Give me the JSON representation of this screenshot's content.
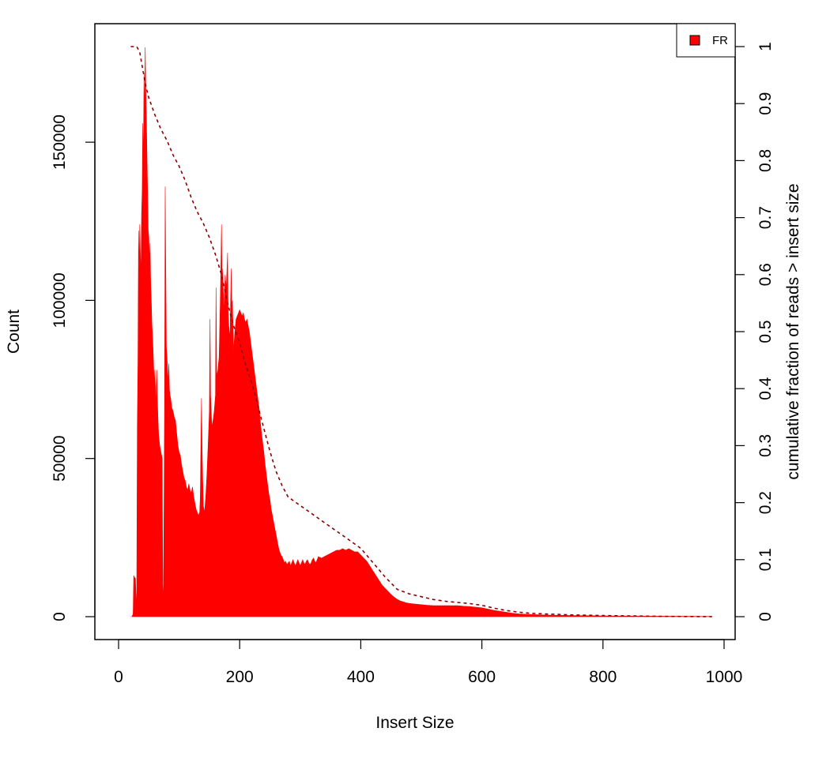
{
  "chart_data": {
    "type": "area",
    "title": "",
    "xlabel": "Insert Size",
    "ylabel": "Count",
    "ylabel_right": "cumulative fraction of reads > insert size",
    "xlim": [
      0,
      1000
    ],
    "ylim": [
      -7000,
      187000
    ],
    "ylim_right": [
      0,
      1
    ],
    "x_ticks": [
      0,
      200,
      400,
      600,
      800,
      1000
    ],
    "y_ticks": [
      0,
      50000,
      100000,
      150000
    ],
    "y_ticks_right": [
      0,
      0.1,
      0.2,
      0.3,
      0.4,
      0.5,
      0.6,
      0.7,
      0.8,
      0.9,
      1
    ],
    "grid": false,
    "legend": {
      "position": "top-right",
      "entries": [
        {
          "label": "FR",
          "color": "#ff0000"
        }
      ]
    },
    "series": [
      {
        "name": "FR",
        "kind": "area",
        "color": "#ff0000",
        "points": [
          [
            20,
            0
          ],
          [
            22,
            0
          ],
          [
            24,
            800
          ],
          [
            25,
            13000
          ],
          [
            26,
            12500
          ],
          [
            28,
            12000
          ],
          [
            29,
            3000
          ],
          [
            30,
            9000
          ],
          [
            31,
            60000
          ],
          [
            32,
            80000
          ],
          [
            33,
            122000
          ],
          [
            34,
            110000
          ],
          [
            35,
            124000
          ],
          [
            36,
            114000
          ],
          [
            37,
            108000
          ],
          [
            38,
            127000
          ],
          [
            39,
            135000
          ],
          [
            40,
            156000
          ],
          [
            41,
            144000
          ],
          [
            42,
            172000
          ],
          [
            43,
            158000
          ],
          [
            44,
            180000
          ],
          [
            45,
            166000
          ],
          [
            46,
            158000
          ],
          [
            47,
            145000
          ],
          [
            48,
            134000
          ],
          [
            49,
            122000
          ],
          [
            50,
            120000
          ],
          [
            51,
            112000
          ],
          [
            52,
            118000
          ],
          [
            53,
            106000
          ],
          [
            54,
            100000
          ],
          [
            55,
            93000
          ],
          [
            56,
            89000
          ],
          [
            57,
            84000
          ],
          [
            58,
            79000
          ],
          [
            59,
            74000
          ],
          [
            60,
            78000
          ],
          [
            61,
            72000
          ],
          [
            62,
            66000
          ],
          [
            63,
            78000
          ],
          [
            64,
            70000
          ],
          [
            65,
            63000
          ],
          [
            66,
            58000
          ],
          [
            67,
            56000
          ],
          [
            68,
            54000
          ],
          [
            70,
            52000
          ],
          [
            72,
            50000
          ],
          [
            73,
            10000
          ],
          [
            74,
            4000
          ],
          [
            75,
            30000
          ],
          [
            76,
            68000
          ],
          [
            77,
            136000
          ],
          [
            78,
            110000
          ],
          [
            79,
            85000
          ],
          [
            80,
            82000
          ],
          [
            81,
            78000
          ],
          [
            82,
            74000
          ],
          [
            83,
            80000
          ],
          [
            84,
            72000
          ],
          [
            85,
            70000
          ],
          [
            86,
            69000
          ],
          [
            88,
            66000
          ],
          [
            90,
            65000
          ],
          [
            92,
            63000
          ],
          [
            94,
            62000
          ],
          [
            96,
            58000
          ],
          [
            98,
            54000
          ],
          [
            100,
            52000
          ],
          [
            102,
            51000
          ],
          [
            104,
            48000
          ],
          [
            106,
            46000
          ],
          [
            108,
            44000
          ],
          [
            110,
            43000
          ],
          [
            112,
            41000
          ],
          [
            114,
            40000
          ],
          [
            116,
            42000
          ],
          [
            118,
            40000
          ],
          [
            120,
            39000
          ],
          [
            122,
            41000
          ],
          [
            124,
            38000
          ],
          [
            126,
            36000
          ],
          [
            128,
            34000
          ],
          [
            130,
            33000
          ],
          [
            132,
            32000
          ],
          [
            134,
            33000
          ],
          [
            135,
            38000
          ],
          [
            136,
            56000
          ],
          [
            137,
            69000
          ],
          [
            138,
            52000
          ],
          [
            140,
            35000
          ],
          [
            142,
            33000
          ],
          [
            144,
            38000
          ],
          [
            146,
            45000
          ],
          [
            148,
            55000
          ],
          [
            150,
            65000
          ],
          [
            151,
            94000
          ],
          [
            152,
            70000
          ],
          [
            154,
            60000
          ],
          [
            156,
            62000
          ],
          [
            158,
            65000
          ],
          [
            160,
            70000
          ],
          [
            161,
            104000
          ],
          [
            162,
            76000
          ],
          [
            164,
            78000
          ],
          [
            166,
            82000
          ],
          [
            168,
            100000
          ],
          [
            169,
            112000
          ],
          [
            170,
            124000
          ],
          [
            171,
            105000
          ],
          [
            172,
            110000
          ],
          [
            174,
            96000
          ],
          [
            176,
            108000
          ],
          [
            178,
            104000
          ],
          [
            180,
            115000
          ],
          [
            181,
            96000
          ],
          [
            182,
            92000
          ],
          [
            184,
            88000
          ],
          [
            186,
            110000
          ],
          [
            187,
            98000
          ],
          [
            188,
            100000
          ],
          [
            190,
            84000
          ],
          [
            192,
            90000
          ],
          [
            194,
            94000
          ],
          [
            196,
            95000
          ],
          [
            198,
            96000
          ],
          [
            200,
            97000
          ],
          [
            202,
            96000
          ],
          [
            204,
            95000
          ],
          [
            206,
            96000
          ],
          [
            208,
            94000
          ],
          [
            210,
            93000
          ],
          [
            212,
            94000
          ],
          [
            214,
            92000
          ],
          [
            216,
            90000
          ],
          [
            218,
            87000
          ],
          [
            220,
            84000
          ],
          [
            222,
            81000
          ],
          [
            224,
            78000
          ],
          [
            226,
            75000
          ],
          [
            228,
            72000
          ],
          [
            230,
            69000
          ],
          [
            232,
            66000
          ],
          [
            234,
            62000
          ],
          [
            236,
            58000
          ],
          [
            238,
            55000
          ],
          [
            240,
            52000
          ],
          [
            242,
            48000
          ],
          [
            244,
            45000
          ],
          [
            246,
            42000
          ],
          [
            248,
            39000
          ],
          [
            250,
            37000
          ],
          [
            252,
            34000
          ],
          [
            254,
            32000
          ],
          [
            256,
            30000
          ],
          [
            258,
            28000
          ],
          [
            260,
            26000
          ],
          [
            262,
            24000
          ],
          [
            264,
            22000
          ],
          [
            266,
            20500
          ],
          [
            268,
            19500
          ],
          [
            270,
            19000
          ],
          [
            272,
            18000
          ],
          [
            274,
            17000
          ],
          [
            276,
            17500
          ],
          [
            278,
            16500
          ],
          [
            280,
            17000
          ],
          [
            282,
            17500
          ],
          [
            284,
            16000
          ],
          [
            286,
            17000
          ],
          [
            288,
            18000
          ],
          [
            290,
            17000
          ],
          [
            292,
            16000
          ],
          [
            294,
            17000
          ],
          [
            296,
            18000
          ],
          [
            298,
            17000
          ],
          [
            300,
            16000
          ],
          [
            302,
            17000
          ],
          [
            304,
            18000
          ],
          [
            306,
            17000
          ],
          [
            308,
            16500
          ],
          [
            310,
            17500
          ],
          [
            312,
            18000
          ],
          [
            314,
            17000
          ],
          [
            316,
            16500
          ],
          [
            318,
            17000
          ],
          [
            320,
            18000
          ],
          [
            322,
            18500
          ],
          [
            324,
            17500
          ],
          [
            326,
            17000
          ],
          [
            328,
            18000
          ],
          [
            330,
            19000
          ],
          [
            335,
            18500
          ],
          [
            340,
            19000
          ],
          [
            345,
            19500
          ],
          [
            350,
            20000
          ],
          [
            355,
            20500
          ],
          [
            360,
            21000
          ],
          [
            365,
            21000
          ],
          [
            370,
            21500
          ],
          [
            375,
            21000
          ],
          [
            380,
            21500
          ],
          [
            385,
            21000
          ],
          [
            390,
            20500
          ],
          [
            395,
            20500
          ],
          [
            400,
            19500
          ],
          [
            405,
            18500
          ],
          [
            410,
            17500
          ],
          [
            415,
            16000
          ],
          [
            420,
            14500
          ],
          [
            425,
            13000
          ],
          [
            430,
            11500
          ],
          [
            435,
            10000
          ],
          [
            440,
            9000
          ],
          [
            445,
            8000
          ],
          [
            450,
            7000
          ],
          [
            455,
            6200
          ],
          [
            460,
            5500
          ],
          [
            465,
            5000
          ],
          [
            470,
            4700
          ],
          [
            475,
            4400
          ],
          [
            480,
            4200
          ],
          [
            490,
            4000
          ],
          [
            500,
            3800
          ],
          [
            510,
            3600
          ],
          [
            520,
            3500
          ],
          [
            530,
            3500
          ],
          [
            540,
            3500
          ],
          [
            550,
            3500
          ],
          [
            560,
            3500
          ],
          [
            570,
            3300
          ],
          [
            580,
            3200
          ],
          [
            590,
            3000
          ],
          [
            600,
            2800
          ],
          [
            610,
            2400
          ],
          [
            620,
            2000
          ],
          [
            630,
            1700
          ],
          [
            640,
            1400
          ],
          [
            650,
            1100
          ],
          [
            660,
            900
          ],
          [
            680,
            700
          ],
          [
            700,
            550
          ],
          [
            720,
            450
          ],
          [
            750,
            350
          ],
          [
            780,
            300
          ],
          [
            800,
            250
          ],
          [
            850,
            200
          ],
          [
            900,
            150
          ],
          [
            950,
            100
          ],
          [
            980,
            80
          ]
        ]
      },
      {
        "name": "",
        "kind": "line",
        "axis": "right",
        "style": "dashed",
        "color": "#8b0000",
        "points": [
          [
            20,
            1.0
          ],
          [
            30,
            1.0
          ],
          [
            35,
            0.99
          ],
          [
            40,
            0.96
          ],
          [
            45,
            0.93
          ],
          [
            50,
            0.91
          ],
          [
            60,
            0.88
          ],
          [
            70,
            0.855
          ],
          [
            80,
            0.835
          ],
          [
            90,
            0.81
          ],
          [
            100,
            0.79
          ],
          [
            110,
            0.765
          ],
          [
            120,
            0.735
          ],
          [
            130,
            0.71
          ],
          [
            140,
            0.69
          ],
          [
            150,
            0.665
          ],
          [
            160,
            0.635
          ],
          [
            170,
            0.6
          ],
          [
            180,
            0.55
          ],
          [
            190,
            0.51
          ],
          [
            200,
            0.48
          ],
          [
            210,
            0.44
          ],
          [
            220,
            0.41
          ],
          [
            230,
            0.37
          ],
          [
            240,
            0.33
          ],
          [
            250,
            0.29
          ],
          [
            260,
            0.255
          ],
          [
            270,
            0.23
          ],
          [
            280,
            0.21
          ],
          [
            300,
            0.195
          ],
          [
            320,
            0.18
          ],
          [
            340,
            0.165
          ],
          [
            360,
            0.15
          ],
          [
            380,
            0.135
          ],
          [
            400,
            0.12
          ],
          [
            420,
            0.095
          ],
          [
            440,
            0.07
          ],
          [
            460,
            0.048
          ],
          [
            480,
            0.04
          ],
          [
            500,
            0.035
          ],
          [
            520,
            0.03
          ],
          [
            540,
            0.027
          ],
          [
            560,
            0.025
          ],
          [
            580,
            0.023
          ],
          [
            600,
            0.02
          ],
          [
            620,
            0.015
          ],
          [
            640,
            0.011
          ],
          [
            660,
            0.008
          ],
          [
            680,
            0.006
          ],
          [
            700,
            0.005
          ],
          [
            750,
            0.003
          ],
          [
            800,
            0.002
          ],
          [
            900,
            0.0005
          ],
          [
            980,
            0.0
          ]
        ]
      }
    ]
  }
}
